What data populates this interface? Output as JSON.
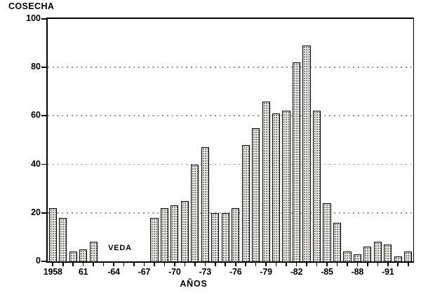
{
  "chart_data": {
    "type": "bar",
    "title": "",
    "ylabel": "COSECHA",
    "xlabel": "AÑOS",
    "ylim": [
      0,
      100
    ],
    "y_ticks": [
      0,
      20,
      40,
      60,
      80,
      100
    ],
    "grid": "dotted horizontal gridlines at 20, 40, 60 and 80; solid box border",
    "legend": "none",
    "annotation": {
      "text": "VEDA",
      "years_covered": "1963-1967 (gap with no bars)"
    },
    "years": [
      1958,
      1959,
      1960,
      1961,
      1962,
      1963,
      1964,
      1965,
      1966,
      1967,
      1968,
      1969,
      1970,
      1971,
      1972,
      1973,
      1974,
      1975,
      1976,
      1977,
      1978,
      1979,
      1980,
      1981,
      1982,
      1983,
      1984,
      1985,
      1986,
      1987,
      1988,
      1989,
      1990,
      1991,
      1992,
      1993
    ],
    "values": [
      22,
      18,
      4,
      5,
      8,
      0,
      0,
      0,
      0,
      0,
      18,
      22,
      23,
      25,
      40,
      47,
      20,
      20,
      22,
      48,
      55,
      66,
      61,
      62,
      82,
      89,
      62,
      24,
      16,
      4,
      3,
      6,
      8,
      7,
      2,
      4
    ],
    "x_tick_labels": [
      {
        "year": 1958,
        "label": "1958"
      },
      {
        "year": 1961,
        "label": "61"
      },
      {
        "year": 1964,
        "label": "-64"
      },
      {
        "year": 1967,
        "label": "-67"
      },
      {
        "year": 1970,
        "label": "-70"
      },
      {
        "year": 1973,
        "label": "-73"
      },
      {
        "year": 1976,
        "label": "-76"
      },
      {
        "year": 1979,
        "label": "-79"
      },
      {
        "year": 1982,
        "label": "-82"
      },
      {
        "year": 1985,
        "label": "-85"
      },
      {
        "year": 1988,
        "label": "-88"
      },
      {
        "year": 1991,
        "label": "-91"
      }
    ]
  },
  "colors": {
    "background": "#ffffff",
    "axis": "#000000",
    "text": "#000000",
    "gridline": "#8a8a8a",
    "bar_fill": "#ecebe7",
    "bar_dots": "#3c3c3c",
    "bar_border": "#000000"
  }
}
